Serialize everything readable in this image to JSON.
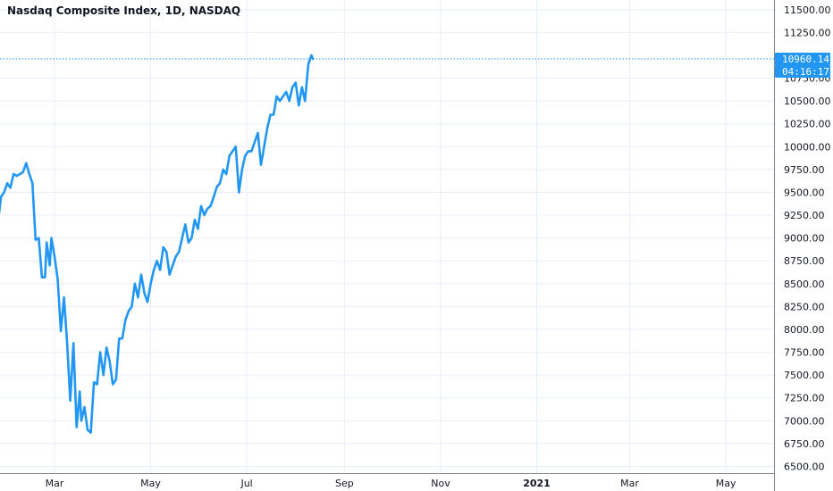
{
  "chart_data": {
    "type": "line",
    "title": "Nasdaq Composite Index, 1D, NASDAQ",
    "series": [
      {
        "color": "#2196f3",
        "x": [
          "2020-01-21",
          "2020-01-23",
          "2020-01-25",
          "2020-01-27",
          "2020-01-29",
          "2020-01-31",
          "2020-02-02",
          "2020-02-04",
          "2020-02-06",
          "2020-02-08",
          "2020-02-10",
          "2020-02-12",
          "2020-02-14",
          "2020-02-16",
          "2020-02-18",
          "2020-02-20",
          "2020-02-22",
          "2020-02-24",
          "2020-02-25",
          "2020-02-27",
          "2020-02-28",
          "2020-03-01",
          "2020-03-03",
          "2020-03-05",
          "2020-03-07",
          "2020-03-09",
          "2020-03-11",
          "2020-03-13",
          "2020-03-15",
          "2020-03-17",
          "2020-03-18",
          "2020-03-20",
          "2020-03-22",
          "2020-03-24",
          "2020-03-26",
          "2020-03-28",
          "2020-03-30",
          "2020-04-01",
          "2020-04-03",
          "2020-04-05",
          "2020-04-07",
          "2020-04-09",
          "2020-04-11",
          "2020-04-13",
          "2020-04-15",
          "2020-04-17",
          "2020-04-19",
          "2020-04-21",
          "2020-04-23",
          "2020-04-25",
          "2020-04-27",
          "2020-04-29",
          "2020-05-01",
          "2020-05-03",
          "2020-05-05",
          "2020-05-07",
          "2020-05-09",
          "2020-05-11",
          "2020-05-13",
          "2020-05-15",
          "2020-05-17",
          "2020-05-19",
          "2020-05-21",
          "2020-05-23",
          "2020-05-25",
          "2020-05-27",
          "2020-05-29",
          "2020-05-31",
          "2020-06-02",
          "2020-06-04",
          "2020-06-06",
          "2020-06-08",
          "2020-06-10",
          "2020-06-12",
          "2020-06-14",
          "2020-06-16",
          "2020-06-18",
          "2020-06-20",
          "2020-06-22",
          "2020-06-24",
          "2020-06-26",
          "2020-06-28",
          "2020-06-30",
          "2020-07-02",
          "2020-07-04",
          "2020-07-06",
          "2020-07-08",
          "2020-07-10",
          "2020-07-12",
          "2020-07-14",
          "2020-07-16",
          "2020-07-18",
          "2020-07-20",
          "2020-07-22",
          "2020-07-24",
          "2020-07-26",
          "2020-07-28",
          "2020-07-30",
          "2020-08-01",
          "2020-08-03",
          "2020-08-05",
          "2020-08-07",
          "2020-08-09",
          "2020-08-11",
          "2020-08-12"
        ],
        "y": [
          9250,
          9300,
          9150,
          9450,
          9500,
          9600,
          9550,
          9700,
          9680,
          9700,
          9720,
          9820,
          9700,
          9600,
          8980,
          9000,
          8570,
          8570,
          8950,
          8700,
          9000,
          8800,
          8550,
          7980,
          8350,
          7850,
          7220,
          7850,
          6930,
          7320,
          7000,
          7150,
          6900,
          6870,
          7420,
          7400,
          7750,
          7500,
          7800,
          7650,
          7400,
          7450,
          7900,
          7900,
          8100,
          8200,
          8250,
          8500,
          8350,
          8600,
          8400,
          8300,
          8500,
          8650,
          8750,
          8650,
          8900,
          8850,
          8600,
          8700,
          8800,
          8850,
          9000,
          9150,
          8950,
          9000,
          9200,
          9100,
          9350,
          9250,
          9320,
          9350,
          9450,
          9560,
          9600,
          9750,
          9700,
          9900,
          9950,
          10000,
          9500,
          9750,
          9900,
          9950,
          9950,
          10050,
          10150,
          9800,
          10000,
          10200,
          10350,
          10350,
          10550,
          10500,
          10550,
          10600,
          10500,
          10650,
          10700,
          10450,
          10650,
          10500,
          10900,
          11000,
          10960
        ]
      }
    ],
    "last_value_label": "10960.14",
    "countdown_label": "04:16:17",
    "x_tick_labels": [
      "Mar",
      "May",
      "Jul",
      "Sep",
      "Nov",
      "2021",
      "Mar",
      "May"
    ],
    "y_tick_labels": [
      "11500.00",
      "11250.00",
      "10750.00",
      "10500.00",
      "10250.00",
      "10000.00",
      "9750.00",
      "9500.00",
      "9250.00",
      "9000.00",
      "8750.00",
      "8500.00",
      "8250.00",
      "8000.00",
      "7750.00",
      "7500.00",
      "7250.00",
      "7000.00",
      "6750.00",
      "6500.00"
    ],
    "ylim": [
      6500,
      11500
    ],
    "grid": true
  }
}
